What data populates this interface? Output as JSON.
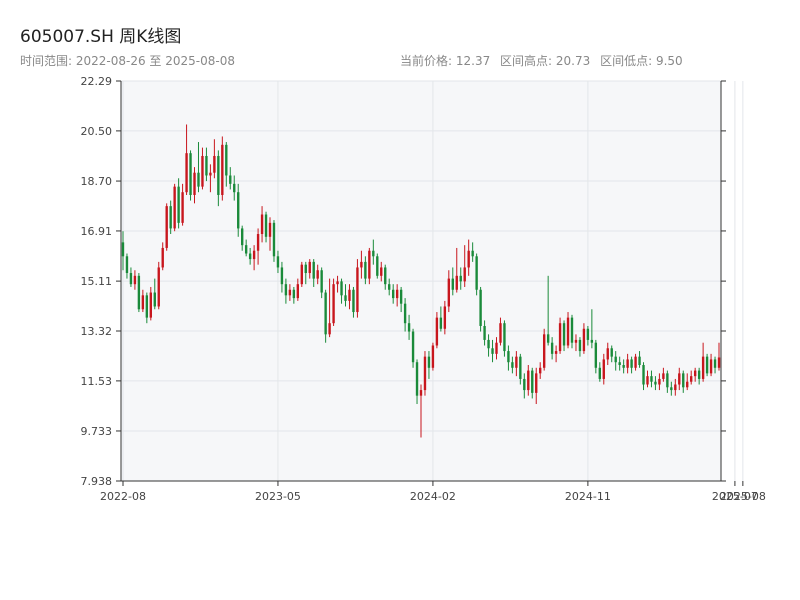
{
  "header": {
    "title": "605007.SH 周K线图",
    "range": "时间范围: 2022-08-26 至 2025-08-08",
    "current_price": "当前价格: 12.37",
    "range_high": "区间高点: 20.73",
    "range_low": "区间低点: 9.50"
  },
  "colors": {
    "up": "#c8161d",
    "down": "#1a8a3a",
    "grid": "#e3e6ea",
    "plot_bg": "#f6f7f9",
    "axis": "#333333"
  },
  "chart_data": {
    "type": "candlestick",
    "title": "605007.SH 周K线图",
    "xlabel": "",
    "ylabel": "",
    "ylim": [
      7.938,
      22.29
    ],
    "yticks": [
      "22.29",
      "20.50",
      "18.70",
      "16.91",
      "15.11",
      "13.32",
      "11.53",
      "9.733",
      "7.938"
    ],
    "xticks": [
      {
        "label": "2022-08",
        "index": 0
      },
      {
        "label": "2023-05",
        "index": 39
      },
      {
        "label": "2024-02",
        "index": 78
      },
      {
        "label": "2024-11",
        "index": 117
      },
      {
        "label": "2025-07",
        "index": 154
      },
      {
        "label": "2025-08",
        "index": 156
      }
    ],
    "grid": true,
    "candles": [
      [
        16.5,
        16.0,
        16.9,
        15.5
      ],
      [
        16.0,
        15.4,
        16.1,
        15.2
      ],
      [
        15.4,
        15.0,
        15.6,
        14.9
      ],
      [
        15.0,
        15.3,
        15.5,
        14.8
      ],
      [
        15.3,
        14.1,
        15.4,
        14.0
      ],
      [
        14.1,
        14.6,
        14.8,
        14.0
      ],
      [
        14.6,
        13.8,
        14.7,
        13.6
      ],
      [
        13.8,
        14.7,
        14.9,
        13.7
      ],
      [
        14.7,
        14.2,
        15.2,
        14.1
      ],
      [
        14.2,
        15.6,
        15.8,
        14.1
      ],
      [
        15.6,
        16.3,
        16.5,
        15.5
      ],
      [
        16.3,
        17.8,
        17.9,
        16.2
      ],
      [
        17.8,
        17.0,
        18.0,
        16.8
      ],
      [
        17.0,
        18.5,
        18.6,
        16.9
      ],
      [
        18.5,
        17.2,
        18.8,
        17.0
      ],
      [
        17.2,
        18.3,
        18.6,
        17.1
      ],
      [
        18.3,
        19.7,
        20.73,
        18.2
      ],
      [
        19.7,
        18.2,
        19.8,
        18.0
      ],
      [
        18.2,
        19.0,
        19.2,
        17.9
      ],
      [
        19.0,
        18.5,
        20.1,
        18.3
      ],
      [
        18.5,
        19.6,
        19.9,
        18.4
      ],
      [
        19.6,
        18.9,
        19.9,
        18.7
      ],
      [
        18.9,
        19.0,
        19.3,
        18.3
      ],
      [
        19.0,
        19.6,
        20.2,
        18.8
      ],
      [
        19.6,
        18.2,
        19.8,
        17.8
      ],
      [
        18.2,
        20.0,
        20.3,
        18.0
      ],
      [
        20.0,
        18.9,
        20.1,
        18.5
      ],
      [
        18.9,
        18.6,
        19.2,
        18.4
      ],
      [
        18.6,
        18.3,
        18.9,
        18.0
      ],
      [
        18.3,
        17.0,
        18.6,
        16.7
      ],
      [
        17.0,
        16.4,
        17.1,
        16.2
      ],
      [
        16.4,
        16.1,
        16.6,
        16.0
      ],
      [
        16.1,
        15.9,
        16.3,
        15.7
      ],
      [
        15.9,
        16.2,
        16.4,
        15.5
      ],
      [
        16.2,
        16.8,
        17.0,
        15.7
      ],
      [
        16.8,
        17.5,
        17.8,
        16.5
      ],
      [
        17.5,
        16.7,
        17.6,
        16.5
      ],
      [
        16.7,
        17.2,
        17.4,
        16.2
      ],
      [
        17.2,
        16.0,
        17.3,
        15.8
      ],
      [
        16.0,
        15.6,
        16.2,
        15.4
      ],
      [
        15.6,
        15.0,
        15.8,
        14.7
      ],
      [
        15.0,
        14.6,
        15.2,
        14.3
      ],
      [
        14.6,
        14.8,
        15.0,
        14.4
      ],
      [
        14.8,
        14.5,
        14.9,
        14.3
      ],
      [
        14.5,
        15.0,
        15.2,
        14.4
      ],
      [
        15.0,
        15.7,
        15.8,
        14.9
      ],
      [
        15.7,
        15.4,
        15.8,
        15.0
      ],
      [
        15.4,
        15.8,
        15.9,
        15.2
      ],
      [
        15.8,
        15.2,
        15.9,
        14.9
      ],
      [
        15.2,
        15.5,
        15.7,
        15.0
      ],
      [
        15.5,
        14.7,
        15.6,
        14.5
      ],
      [
        14.7,
        13.2,
        14.8,
        12.9
      ],
      [
        13.2,
        13.6,
        15.2,
        13.1
      ],
      [
        13.6,
        15.0,
        15.2,
        13.5
      ],
      [
        15.0,
        15.1,
        15.3,
        14.7
      ],
      [
        15.1,
        14.6,
        15.2,
        14.3
      ],
      [
        14.6,
        14.4,
        15.0,
        14.2
      ],
      [
        14.4,
        14.8,
        15.0,
        14.1
      ],
      [
        14.8,
        14.0,
        14.9,
        13.8
      ],
      [
        14.0,
        15.6,
        15.9,
        13.8
      ],
      [
        15.6,
        15.8,
        16.2,
        15.2
      ],
      [
        15.8,
        15.2,
        16.0,
        15.0
      ],
      [
        15.2,
        16.2,
        16.3,
        15.0
      ],
      [
        16.2,
        16.0,
        16.6,
        15.7
      ],
      [
        16.0,
        15.3,
        16.1,
        15.2
      ],
      [
        15.3,
        15.6,
        15.8,
        15.1
      ],
      [
        15.6,
        15.0,
        15.7,
        14.8
      ],
      [
        15.0,
        14.8,
        15.2,
        14.6
      ],
      [
        14.8,
        14.5,
        15.0,
        14.3
      ],
      [
        14.5,
        14.8,
        15.0,
        14.2
      ],
      [
        14.8,
        14.3,
        14.9,
        14.0
      ],
      [
        14.3,
        13.6,
        14.5,
        13.3
      ],
      [
        13.6,
        13.3,
        13.9,
        13.0
      ],
      [
        13.3,
        12.2,
        13.4,
        12.0
      ],
      [
        12.2,
        11.0,
        12.3,
        10.7
      ],
      [
        11.0,
        11.2,
        11.4,
        9.5
      ],
      [
        11.2,
        12.4,
        12.6,
        11.0
      ],
      [
        12.4,
        12.0,
        12.6,
        11.6
      ],
      [
        12.0,
        12.8,
        12.9,
        11.9
      ],
      [
        12.8,
        13.8,
        14.0,
        12.7
      ],
      [
        13.8,
        13.4,
        14.2,
        13.3
      ],
      [
        13.4,
        14.2,
        14.4,
        13.2
      ],
      [
        14.2,
        15.2,
        15.5,
        14.0
      ],
      [
        15.2,
        14.8,
        15.6,
        14.6
      ],
      [
        14.8,
        15.3,
        16.3,
        14.7
      ],
      [
        15.3,
        15.1,
        15.6,
        14.8
      ],
      [
        15.1,
        15.6,
        16.4,
        14.9
      ],
      [
        15.6,
        16.2,
        16.6,
        15.3
      ],
      [
        16.2,
        16.0,
        16.5,
        15.8
      ],
      [
        16.0,
        14.8,
        16.1,
        14.6
      ],
      [
        14.8,
        13.5,
        14.9,
        13.3
      ],
      [
        13.5,
        13.0,
        13.7,
        12.8
      ],
      [
        13.0,
        12.7,
        13.2,
        12.4
      ],
      [
        12.7,
        12.5,
        13.0,
        12.2
      ],
      [
        12.5,
        12.9,
        13.1,
        12.3
      ],
      [
        12.9,
        13.6,
        13.8,
        12.8
      ],
      [
        13.6,
        12.6,
        13.7,
        12.4
      ],
      [
        12.6,
        12.2,
        12.8,
        11.9
      ],
      [
        12.2,
        12.0,
        12.4,
        11.8
      ],
      [
        12.0,
        12.4,
        12.6,
        11.7
      ],
      [
        12.4,
        11.6,
        12.5,
        11.4
      ],
      [
        11.6,
        11.2,
        11.8,
        10.9
      ],
      [
        11.2,
        11.9,
        12.1,
        11.0
      ],
      [
        11.9,
        11.1,
        12.0,
        10.9
      ],
      [
        11.1,
        11.8,
        12.0,
        10.7
      ],
      [
        11.8,
        12.0,
        12.2,
        11.6
      ],
      [
        12.0,
        13.2,
        13.4,
        11.9
      ],
      [
        13.2,
        12.9,
        15.3,
        12.8
      ],
      [
        12.9,
        12.5,
        13.1,
        12.3
      ],
      [
        12.5,
        12.6,
        12.8,
        12.2
      ],
      [
        12.6,
        13.6,
        13.8,
        12.5
      ],
      [
        13.6,
        12.8,
        13.7,
        12.6
      ],
      [
        12.8,
        13.8,
        14.0,
        12.7
      ],
      [
        13.8,
        12.9,
        13.9,
        12.7
      ],
      [
        12.9,
        13.0,
        13.2,
        12.6
      ],
      [
        13.0,
        12.6,
        13.1,
        12.4
      ],
      [
        12.6,
        13.4,
        13.6,
        12.5
      ],
      [
        13.4,
        13.0,
        13.5,
        12.8
      ],
      [
        13.0,
        12.9,
        14.1,
        12.7
      ],
      [
        12.9,
        12.0,
        13.0,
        11.8
      ],
      [
        12.0,
        11.6,
        12.2,
        11.5
      ],
      [
        11.6,
        12.3,
        12.5,
        11.4
      ],
      [
        12.3,
        12.7,
        12.9,
        12.1
      ],
      [
        12.7,
        12.4,
        12.8,
        12.2
      ],
      [
        12.4,
        12.2,
        12.6,
        11.9
      ],
      [
        12.2,
        12.1,
        12.4,
        11.9
      ],
      [
        12.1,
        12.0,
        12.3,
        11.8
      ],
      [
        12.0,
        12.3,
        12.5,
        11.8
      ],
      [
        12.3,
        12.0,
        12.4,
        11.8
      ],
      [
        12.0,
        12.4,
        12.5,
        11.9
      ],
      [
        12.4,
        12.1,
        12.6,
        12.0
      ],
      [
        12.1,
        11.4,
        12.2,
        11.2
      ],
      [
        11.4,
        11.7,
        11.9,
        11.3
      ],
      [
        11.7,
        11.5,
        11.9,
        11.3
      ],
      [
        11.5,
        11.4,
        11.7,
        11.2
      ],
      [
        11.4,
        11.6,
        11.8,
        11.2
      ],
      [
        11.6,
        11.8,
        12.0,
        11.5
      ],
      [
        11.8,
        11.3,
        11.9,
        11.1
      ],
      [
        11.3,
        11.2,
        11.5,
        11.0
      ],
      [
        11.2,
        11.4,
        11.6,
        11.0
      ],
      [
        11.4,
        11.8,
        12.0,
        11.2
      ],
      [
        11.8,
        11.3,
        11.9,
        11.1
      ],
      [
        11.3,
        11.5,
        11.8,
        11.2
      ],
      [
        11.5,
        11.7,
        11.9,
        11.4
      ],
      [
        11.7,
        11.9,
        12.0,
        11.5
      ],
      [
        11.9,
        11.6,
        12.0,
        11.4
      ],
      [
        11.6,
        12.4,
        12.9,
        11.5
      ],
      [
        12.4,
        11.8,
        12.5,
        11.7
      ],
      [
        11.8,
        12.3,
        12.5,
        11.7
      ],
      [
        12.3,
        12.0,
        12.4,
        11.8
      ],
      [
        12.0,
        12.37,
        12.9,
        11.9
      ]
    ]
  }
}
